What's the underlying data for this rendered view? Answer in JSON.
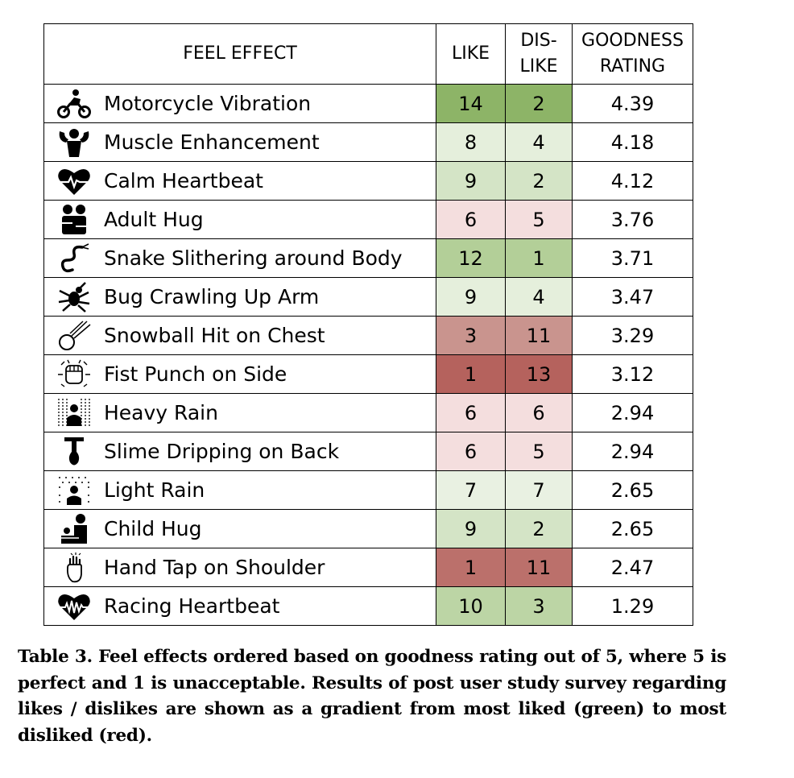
{
  "table": {
    "headers": {
      "effect": "FEEL EFFECT",
      "like": "LIKE",
      "dislike_line1": "DIS-",
      "dislike_line2": "LIKE",
      "rating_line1": "GOODNESS",
      "rating_line2": "RATING"
    },
    "rows": [
      {
        "icon": "motorcycle-icon",
        "effect": "Motorcycle Vibration",
        "like": "14",
        "dislike": "2",
        "rating": "4.39",
        "like_color": "#8db467",
        "dislike_color": "#8db467"
      },
      {
        "icon": "muscle-icon",
        "effect": "Muscle Enhancement",
        "like": "8",
        "dislike": "4",
        "rating": "4.18",
        "like_color": "#e5efdc",
        "dislike_color": "#e5efdc"
      },
      {
        "icon": "heart-calm-icon",
        "effect": "Calm Heartbeat",
        "like": "9",
        "dislike": "2",
        "rating": "4.12",
        "like_color": "#d4e4c6",
        "dislike_color": "#d4e4c6"
      },
      {
        "icon": "hug-icon",
        "effect": "Adult Hug",
        "like": "6",
        "dislike": "5",
        "rating": "3.76",
        "like_color": "#f4dede",
        "dislike_color": "#f4dede"
      },
      {
        "icon": "snake-icon",
        "effect": "Snake Slithering around Body",
        "like": "12",
        "dislike": "1",
        "rating": "3.71",
        "like_color": "#b3cf98",
        "dislike_color": "#b3cf98"
      },
      {
        "icon": "bug-icon",
        "effect": "Bug Crawling Up Arm",
        "like": "9",
        "dislike": "4",
        "rating": "3.47",
        "like_color": "#e5efdc",
        "dislike_color": "#e5efdc"
      },
      {
        "icon": "snowball-icon",
        "effect": "Snowball Hit on Chest",
        "like": "3",
        "dislike": "11",
        "rating": "3.29",
        "like_color": "#c9948e",
        "dislike_color": "#c9948e"
      },
      {
        "icon": "fist-icon",
        "effect": "Fist Punch on Side",
        "like": "1",
        "dislike": "13",
        "rating": "3.12",
        "like_color": "#b5625d",
        "dislike_color": "#b5625d"
      },
      {
        "icon": "heavy-rain-icon",
        "effect": "Heavy Rain",
        "like": "6",
        "dislike": "6",
        "rating": "2.94",
        "like_color": "#f4dede",
        "dislike_color": "#f4dede"
      },
      {
        "icon": "slime-icon",
        "effect": "Slime Dripping on Back",
        "like": "6",
        "dislike": "5",
        "rating": "2.94",
        "like_color": "#f4dede",
        "dislike_color": "#f4dede"
      },
      {
        "icon": "light-rain-icon",
        "effect": "Light Rain",
        "like": "7",
        "dislike": "7",
        "rating": "2.65",
        "like_color": "#e9f1e2",
        "dislike_color": "#e9f1e2"
      },
      {
        "icon": "child-hug-icon",
        "effect": "Child Hug",
        "like": "9",
        "dislike": "2",
        "rating": "2.65",
        "like_color": "#d4e4c6",
        "dislike_color": "#d4e4c6"
      },
      {
        "icon": "hand-tap-icon",
        "effect": "Hand Tap on Shoulder",
        "like": "1",
        "dislike": "11",
        "rating": "2.47",
        "like_color": "#bb706b",
        "dislike_color": "#bb706b"
      },
      {
        "icon": "heart-racing-icon",
        "effect": "Racing Heartbeat",
        "like": "10",
        "dislike": "3",
        "rating": "1.29",
        "like_color": "#bcd5a5",
        "dislike_color": "#bcd5a5"
      }
    ]
  },
  "caption": "Table 3.  Feel effects ordered based on goodness rating out of 5, where 5 is perfect and 1 is unacceptable.  Results of post user study survey regarding likes / dislikes are shown as a gradient from most liked (green) to most disliked (red)."
}
